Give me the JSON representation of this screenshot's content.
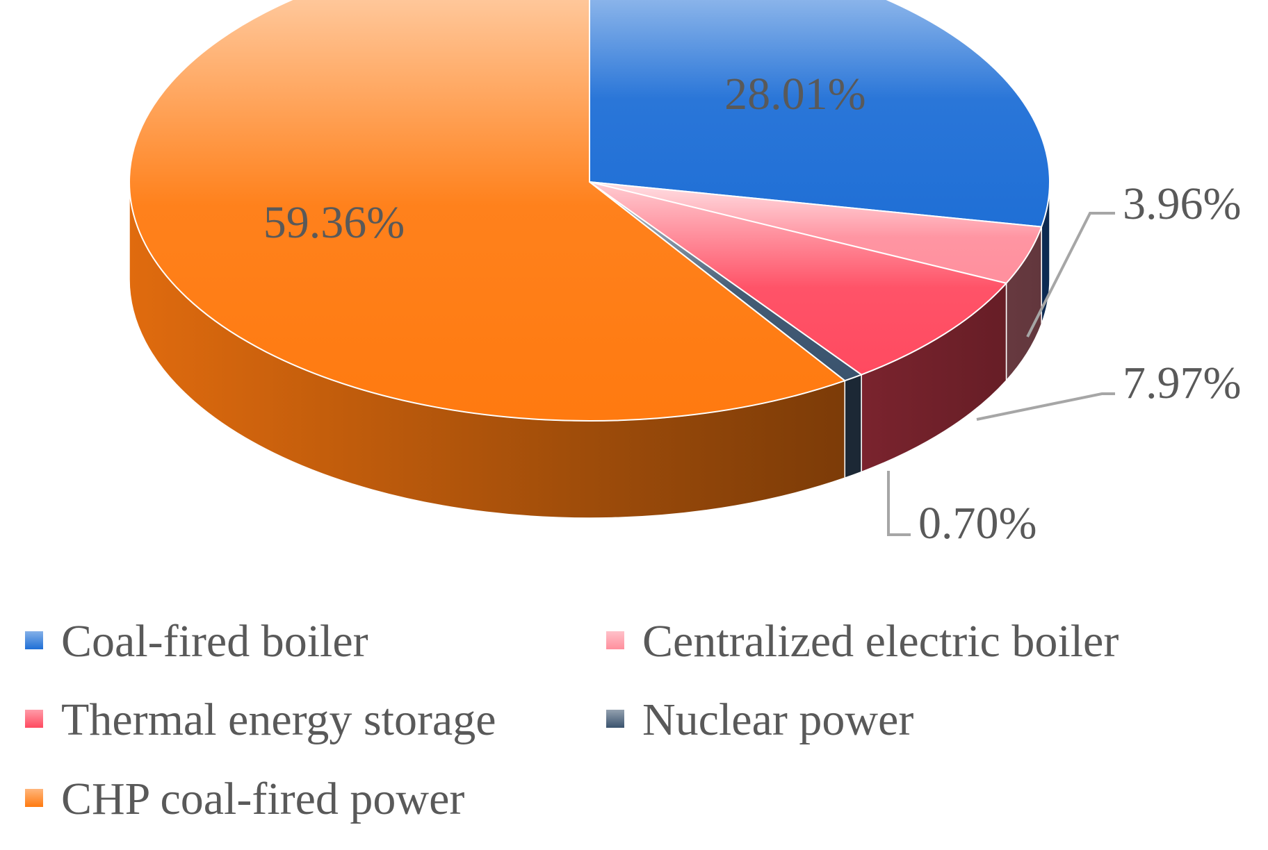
{
  "chart_data": {
    "type": "pie",
    "style": "3d",
    "start_angle_deg": 0,
    "direction": "clockwise",
    "legend_position": "bottom",
    "title": "",
    "series": [
      {
        "name": "Coal-fired boiler",
        "value": 28.01,
        "label": "28.01%",
        "color": "#1f6fd6",
        "label_placement": "inside"
      },
      {
        "name": "Centralized electric boiler",
        "value": 3.96,
        "label": "3.96%",
        "color": "#ff8f9d",
        "label_placement": "outside"
      },
      {
        "name": "Thermal energy storage",
        "value": 7.97,
        "label": "7.97%",
        "color": "#ff4a60",
        "label_placement": "outside"
      },
      {
        "name": "Nuclear power",
        "value": 0.7,
        "label": "0.70%",
        "color": "#3a536e",
        "label_placement": "outside"
      },
      {
        "name": "CHP coal-fired power",
        "value": 59.36,
        "label": "59.36%",
        "color": "#ff7a10",
        "label_placement": "inside"
      }
    ]
  }
}
